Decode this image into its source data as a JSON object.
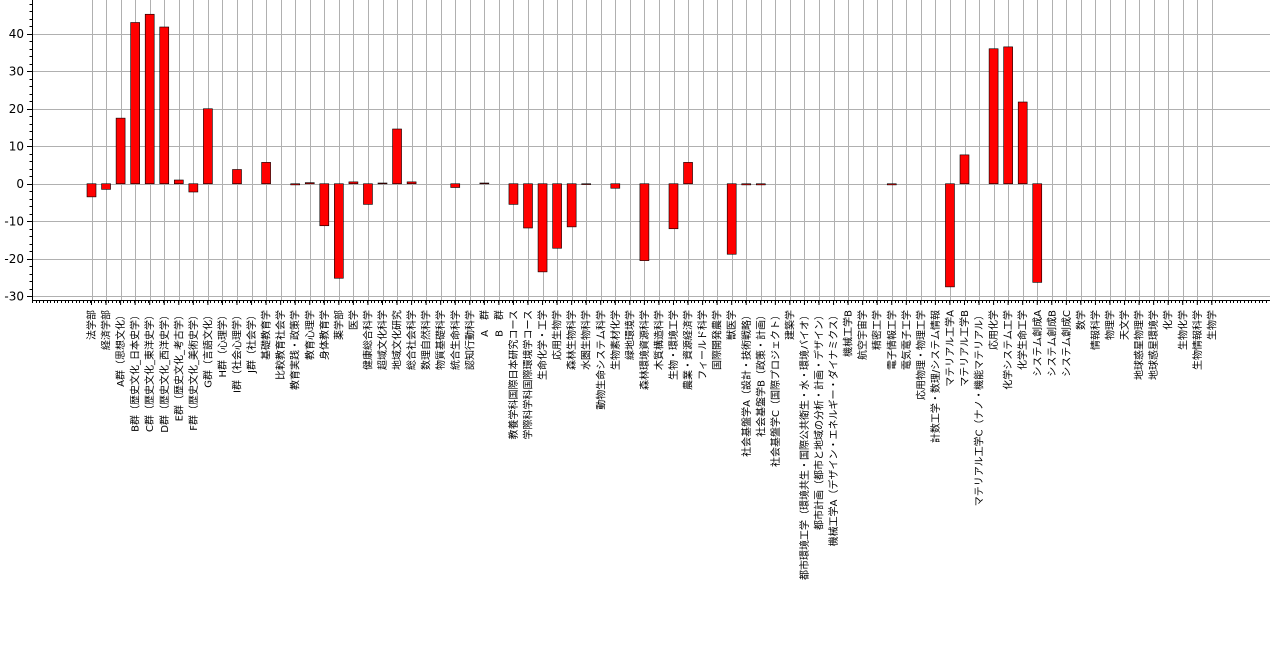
{
  "chart_data": {
    "type": "bar",
    "title": "",
    "xlabel": "",
    "ylabel": "",
    "ylim": [
      -31,
      49
    ],
    "yticks": [
      -30,
      -20,
      -10,
      0,
      10,
      20,
      30,
      40
    ],
    "grid": true,
    "bar_color": "#ff0000",
    "categories": [
      "法学部",
      "経済学部",
      "A群（思想文化）",
      "B群（歴史文化_日本史学）",
      "C群（歴史文化_東洋史学）",
      "D群（歴史文化_西洋史学）",
      "E群（歴史文化_考古学）",
      "F群（歴史文化_美術史学）",
      "G群（言語文化）",
      "H群（心理学）",
      "I群（社会心理学）",
      "J群（社会学）",
      "基礎教育学",
      "比較教育社会学",
      "教育実践・政策学",
      "教育心理学",
      "身体教育学",
      "薬学部",
      "医学",
      "健康総合科学",
      "超域文化科学",
      "地域文化研究",
      "総合社会科学",
      "数理自然科学",
      "物質基礎科学",
      "統合生命科学",
      "認知行動科学",
      "A　群",
      "B　群",
      "教養学科国際日本研究コース",
      "学際科学科国際環境学コース",
      "生命化学・工学",
      "応用生物学",
      "森林生物科学",
      "水圏生物科学",
      "動物生命システム科学",
      "生物素材化学",
      "緑地環境学",
      "森林環境資源科学",
      "木質構造科学",
      "生物・環境工学",
      "農業・資源経済学",
      "フィールド科学",
      "国際開発農学",
      "獣医学",
      "社会基盤学A（設計・技術戦略）",
      "社会基盤学B（政策・計画）",
      "社会基盤学C（国際プロジェクト）",
      "建築学",
      "都市環境工学（環境共生・国際公共衛生・水・環境バイオ）",
      "都市計画（都市と地域の分析・計画・デザイン）",
      "機械工学A（デザイン・エネルギー・ダイナミクス）",
      "機械工学B",
      "航空宇宙学",
      "精密工学",
      "電子情報工学",
      "電気電子工学",
      "応用物理・物理工学",
      "計数工学・数理/システム情報",
      "マテリアル工学A",
      "マテリアル工学B",
      "マテリアル工学C（ナノ・機能マテリアル）",
      "応用化学",
      "化学システム工学",
      "化学生命工学",
      "システム創成A",
      "システム創成B",
      "システム創成C",
      "数学",
      "情報科学",
      "物理学",
      "天文学",
      "地球惑星物理学",
      "地球惑星環境学",
      "化学",
      "生物化学",
      "生物情報科学",
      "生物学"
    ],
    "values": [
      -3.5,
      -1.5,
      17.5,
      43.0,
      45.2,
      41.8,
      1.0,
      -2.2,
      20.0,
      0,
      3.8,
      0,
      5.7,
      0,
      -0.3,
      0.3,
      -11.2,
      -25.2,
      0.5,
      -5.5,
      0.2,
      14.6,
      0.5,
      0,
      0,
      -1.0,
      0,
      0.2,
      0,
      -5.5,
      -11.8,
      -23.5,
      -17.2,
      -11.5,
      -0.2,
      0,
      -1.2,
      0,
      -20.5,
      0,
      -12.0,
      5.7,
      0,
      0,
      -18.8,
      -0.3,
      -0.3,
      0,
      0,
      0,
      0,
      0,
      0,
      0,
      0,
      -0.3,
      0,
      0,
      0,
      -27.5,
      7.7,
      0,
      36.0,
      36.5,
      21.8,
      -26.3,
      0,
      0,
      0,
      0,
      0,
      0,
      0,
      0,
      0,
      0,
      0,
      0
    ]
  }
}
